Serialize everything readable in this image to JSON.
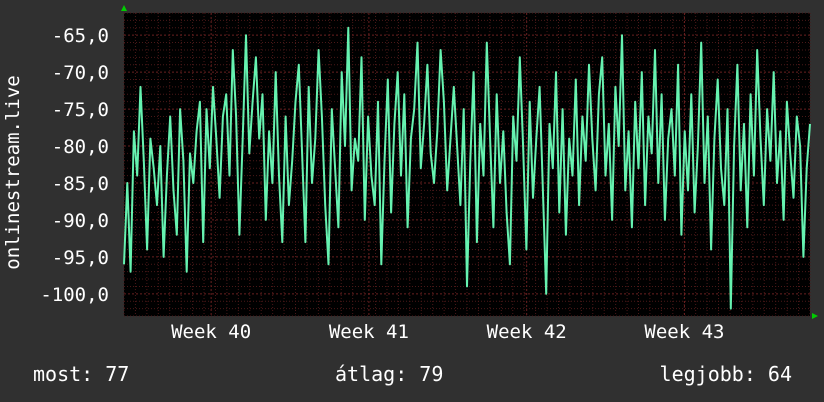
{
  "colors": {
    "background": "#303030",
    "plot_background": "#000000",
    "grid_minor": "#4a1818",
    "grid_major": "#6a2020",
    "line": "#66f2b0",
    "arrow": "#00cc00",
    "text": "#ffffff"
  },
  "chart_data": {
    "type": "line",
    "ylabel": "onlinestream.live",
    "xlabel": "",
    "title": "",
    "yticks": [
      "-65,0",
      "-70,0",
      "-75,0",
      "-80,0",
      "-85,0",
      "-90,0",
      "-95,0",
      "-100,0"
    ],
    "ytick_values": [
      -65,
      -70,
      -75,
      -80,
      -85,
      -90,
      -95,
      -100
    ],
    "ylim": [
      -103,
      -62
    ],
    "xticks": [
      "Week 40",
      "Week 41",
      "Week 42",
      "Week 43"
    ],
    "xtick_positions": [
      12.7,
      35.7,
      58.7,
      81.7
    ],
    "xlim": [
      0,
      100
    ],
    "grid": true,
    "series": [
      {
        "values": [
          -96,
          -85,
          -97,
          -78,
          -84,
          -72,
          -82,
          -94,
          -79,
          -83,
          -88,
          -80,
          -95,
          -84,
          -76,
          -86,
          -92,
          -75,
          -82,
          -97,
          -81,
          -85,
          -78,
          -74,
          -93,
          -75,
          -83,
          -72,
          -79,
          -87,
          -76,
          -73,
          -84,
          -67,
          -76,
          -92,
          -79,
          -65,
          -81,
          -74,
          -68,
          -79,
          -73,
          -90,
          -78,
          -85,
          -70,
          -84,
          -93,
          -76,
          -88,
          -82,
          -74,
          -69,
          -81,
          -93,
          -72,
          -85,
          -79,
          -67,
          -76,
          -88,
          -96,
          -75,
          -83,
          -91,
          -70,
          -80,
          -64,
          -86,
          -79,
          -82,
          -68,
          -90,
          -76,
          -84,
          -88,
          -74,
          -96,
          -82,
          -71,
          -89,
          -77,
          -70,
          -84,
          -73,
          -91,
          -79,
          -75,
          -66,
          -83,
          -77,
          -69,
          -81,
          -85,
          -78,
          -67,
          -74,
          -86,
          -79,
          -72,
          -80,
          -88,
          -75,
          -99,
          -82,
          -70,
          -93,
          -77,
          -84,
          -66,
          -79,
          -91,
          -73,
          -85,
          -78,
          -89,
          -96,
          -76,
          -82,
          -68,
          -80,
          -94,
          -74,
          -87,
          -79,
          -72,
          -86,
          -100,
          -77,
          -83,
          -70,
          -89,
          -75,
          -92,
          -79,
          -84,
          -71,
          -88,
          -76,
          -82,
          -69,
          -79,
          -86,
          -73,
          -68,
          -84,
          -77,
          -90,
          -72,
          -80,
          -65,
          -86,
          -78,
          -91,
          -74,
          -83,
          -70,
          -88,
          -76,
          -81,
          -67,
          -85,
          -73,
          -90,
          -79,
          -75,
          -84,
          -69,
          -92,
          -78,
          -86,
          -73,
          -89,
          -80,
          -66,
          -85,
          -76,
          -94,
          -79,
          -71,
          -83,
          -88,
          -75,
          -102,
          -80,
          -69,
          -86,
          -77,
          -91,
          -73,
          -84,
          -67,
          -79,
          -88,
          -75,
          -82,
          -70,
          -85,
          -78,
          -90,
          -74,
          -81,
          -87,
          -76,
          -80,
          -95,
          -83,
          -77
        ]
      }
    ]
  },
  "footer": {
    "now": "most: 77",
    "avg": "átlag: 79",
    "best": "legjobb: 64"
  }
}
